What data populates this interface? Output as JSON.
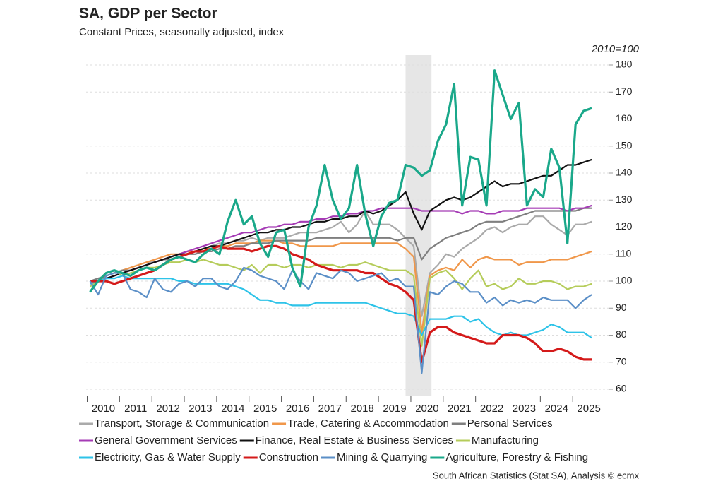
{
  "chart_data": {
    "type": "line",
    "title": "SA, GDP per Sector",
    "subtitle": "Constant Prices, seasonally adjusted, index",
    "y_annotation": "2010=100",
    "source": "South African Statistics (Stat SA), Analysis © ecmx",
    "x": [
      2010,
      2010.25,
      2010.5,
      2010.75,
      2011,
      2011.25,
      2011.5,
      2011.75,
      2012,
      2012.25,
      2012.5,
      2012.75,
      2013,
      2013.25,
      2013.5,
      2013.75,
      2014,
      2014.25,
      2014.5,
      2014.75,
      2015,
      2015.25,
      2015.5,
      2015.75,
      2016,
      2016.25,
      2016.5,
      2016.75,
      2017,
      2017.25,
      2017.5,
      2017.75,
      2018,
      2018.25,
      2018.5,
      2018.75,
      2019,
      2019.25,
      2019.5,
      2019.75,
      2020,
      2020.25,
      2020.5,
      2020.75,
      2021,
      2021.25,
      2021.5,
      2021.75,
      2022,
      2022.25,
      2022.5,
      2022.75,
      2023,
      2023.25,
      2023.5,
      2023.75,
      2024,
      2024.25,
      2024.5,
      2024.75,
      2025,
      2025.25,
      2025.5
    ],
    "xlim": [
      2009.88,
      2025.65
    ],
    "xticks": [
      {
        "value": 2010,
        "label": "2010"
      },
      {
        "value": 2011,
        "label": "2011"
      },
      {
        "value": 2012,
        "label": "2012"
      },
      {
        "value": 2013,
        "label": "2013"
      },
      {
        "value": 2014,
        "label": "2014"
      },
      {
        "value": 2015,
        "label": "2015"
      },
      {
        "value": 2016,
        "label": "2016"
      },
      {
        "value": 2017,
        "label": "2017"
      },
      {
        "value": 2018,
        "label": "2018"
      },
      {
        "value": 2019,
        "label": "2019"
      },
      {
        "value": 2020,
        "label": "2020"
      },
      {
        "value": 2021,
        "label": "2021"
      },
      {
        "value": 2022,
        "label": "2022"
      },
      {
        "value": 2023,
        "label": "2023"
      },
      {
        "value": 2024,
        "label": "2024"
      },
      {
        "value": 2025,
        "label": "2025"
      }
    ],
    "ylim": [
      60,
      180
    ],
    "yticks": [
      60,
      70,
      80,
      90,
      100,
      110,
      120,
      130,
      140,
      150,
      160,
      170,
      180
    ],
    "grid": true,
    "highlight_x": [
      2019.75,
      2020.55
    ],
    "series": [
      {
        "name": "Transport, Storage & Communication",
        "color": "#aaaaaa",
        "values": [
          100,
          101,
          102,
          103,
          104,
          105,
          106,
          107,
          107,
          108,
          109,
          110,
          110,
          111,
          112,
          113,
          114,
          114,
          115,
          115,
          116,
          115,
          116,
          116,
          116,
          117,
          118,
          118,
          118,
          119,
          120,
          122,
          118,
          121,
          126,
          121,
          121,
          121,
          119,
          116,
          113,
          87,
          103,
          106,
          110,
          109,
          112,
          114,
          116,
          119,
          120,
          118,
          120,
          121,
          121,
          124,
          124,
          121,
          119,
          117,
          121,
          121,
          122
        ]
      },
      {
        "name": "Trade, Catering & Accommodation",
        "color": "#f0974a",
        "values": [
          98,
          100,
          102,
          103,
          104,
          105,
          106,
          107,
          108,
          109,
          110,
          110,
          111,
          111,
          112,
          112,
          113,
          113,
          114,
          114,
          114,
          115,
          115,
          115,
          114,
          114,
          113,
          113,
          113,
          113,
          113,
          114,
          114,
          114,
          114,
          114,
          114,
          114,
          114,
          112,
          109,
          81,
          102,
          104,
          105,
          104,
          108,
          105,
          108,
          109,
          108,
          108,
          108,
          106,
          107,
          107,
          107,
          108,
          108,
          108,
          109,
          110,
          111
        ]
      },
      {
        "name": "Personal Services",
        "color": "#7f7f7f",
        "values": [
          100,
          101,
          102,
          103,
          104,
          104,
          105,
          106,
          107,
          108,
          108,
          109,
          110,
          110,
          111,
          111,
          112,
          112,
          113,
          113,
          114,
          114,
          114,
          115,
          115,
          115,
          115,
          115,
          116,
          116,
          116,
          116,
          116,
          116,
          116,
          116,
          116,
          116,
          115,
          116,
          116,
          108,
          112,
          114,
          116,
          117,
          118,
          119,
          121,
          122,
          122,
          122,
          123,
          124,
          125,
          126,
          126,
          126,
          126,
          126,
          126,
          127,
          127
        ]
      },
      {
        "name": "General Government Services",
        "color": "#a53bb5",
        "values": [
          99,
          100,
          101,
          102,
          103,
          104,
          105,
          106,
          107,
          108,
          109,
          110,
          111,
          112,
          113,
          114,
          115,
          116,
          117,
          118,
          118,
          119,
          120,
          120,
          121,
          121,
          122,
          122,
          123,
          123,
          124,
          124,
          125,
          125,
          126,
          126,
          127,
          127,
          127,
          127,
          127,
          126,
          126,
          126,
          126,
          126,
          125,
          126,
          126,
          125,
          125,
          126,
          126,
          126,
          127,
          127,
          127,
          127,
          127,
          126,
          127,
          127,
          128
        ]
      },
      {
        "name": "Finance, Real Estate & Business Services",
        "color": "#111111",
        "values": [
          100,
          100,
          101,
          102,
          103,
          104,
          105,
          106,
          107,
          108,
          109,
          110,
          110,
          111,
          112,
          113,
          113,
          114,
          115,
          116,
          117,
          118,
          118,
          119,
          119,
          120,
          120,
          121,
          122,
          122,
          123,
          123,
          124,
          124,
          126,
          125,
          126,
          128,
          130,
          133,
          125,
          119,
          126,
          128,
          130,
          131,
          130,
          131,
          133,
          135,
          137,
          135,
          136,
          136,
          137,
          138,
          139,
          139,
          141,
          143,
          143,
          144,
          145
        ]
      },
      {
        "name": "Manufacturing",
        "color": "#b5cc5a",
        "values": [
          98,
          100,
          103,
          104,
          102,
          103,
          104,
          105,
          105,
          106,
          107,
          107,
          108,
          107,
          108,
          107,
          106,
          106,
          105,
          104,
          106,
          103,
          106,
          106,
          105,
          106,
          106,
          105,
          106,
          106,
          106,
          105,
          106,
          106,
          107,
          106,
          105,
          104,
          104,
          104,
          102,
          76,
          101,
          103,
          104,
          101,
          97,
          101,
          104,
          98,
          99,
          97,
          98,
          101,
          99,
          99,
          100,
          100,
          99,
          97,
          98,
          98,
          99
        ]
      },
      {
        "name": "Electricity, Gas & Water Supply",
        "color": "#2ec3e8",
        "values": [
          99,
          100,
          101,
          101,
          102,
          101,
          101,
          101,
          101,
          101,
          101,
          100,
          100,
          99,
          99,
          99,
          99,
          99,
          98,
          97,
          95,
          93,
          93,
          92,
          92,
          91,
          91,
          91,
          92,
          92,
          92,
          92,
          92,
          92,
          92,
          91,
          90,
          89,
          88,
          88,
          87,
          80,
          86,
          86,
          86,
          87,
          87,
          85,
          86,
          83,
          81,
          80,
          81,
          80,
          80,
          81,
          82,
          84,
          83,
          81,
          81,
          81,
          79
        ]
      },
      {
        "name": "Construction",
        "color": "#d41a1a",
        "values": [
          100,
          100,
          100,
          99,
          100,
          101,
          102,
          103,
          104,
          106,
          108,
          109,
          110,
          111,
          111,
          112,
          113,
          112,
          112,
          112,
          111,
          112,
          113,
          113,
          112,
          110,
          109,
          108,
          106,
          105,
          104,
          104,
          104,
          104,
          103,
          103,
          101,
          99,
          98,
          96,
          93,
          70,
          81,
          83,
          83,
          81,
          80,
          79,
          78,
          77,
          77,
          80,
          80,
          80,
          79,
          77,
          74,
          74,
          75,
          74,
          72,
          71,
          71
        ]
      },
      {
        "name": "Mining & Quarrying",
        "color": "#5b8fc7",
        "values": [
          100,
          95,
          102,
          103,
          103,
          97,
          96,
          94,
          101,
          97,
          96,
          99,
          100,
          98,
          101,
          101,
          98,
          97,
          100,
          105,
          104,
          102,
          101,
          100,
          97,
          104,
          100,
          97,
          103,
          102,
          101,
          104,
          103,
          100,
          101,
          102,
          103,
          100,
          101,
          98,
          98,
          66,
          96,
          95,
          98,
          100,
          99,
          96,
          96,
          92,
          94,
          91,
          93,
          92,
          93,
          92,
          94,
          93,
          93,
          93,
          90,
          93,
          95
        ]
      },
      {
        "name": "Agriculture, Forestry & Fishing",
        "color": "#1aa88a",
        "values": [
          96,
          100,
          103,
          104,
          103,
          102,
          104,
          105,
          104,
          106,
          108,
          109,
          108,
          107,
          110,
          112,
          110,
          122,
          130,
          121,
          124,
          114,
          109,
          118,
          119,
          105,
          98,
          120,
          128,
          143,
          130,
          123,
          127,
          143,
          125,
          113,
          124,
          129,
          130,
          143,
          142,
          139,
          141,
          152,
          158,
          173,
          128,
          146,
          145,
          128,
          178,
          169,
          160,
          166,
          128,
          134,
          131,
          149,
          142,
          114,
          158,
          163,
          164
        ]
      }
    ]
  }
}
